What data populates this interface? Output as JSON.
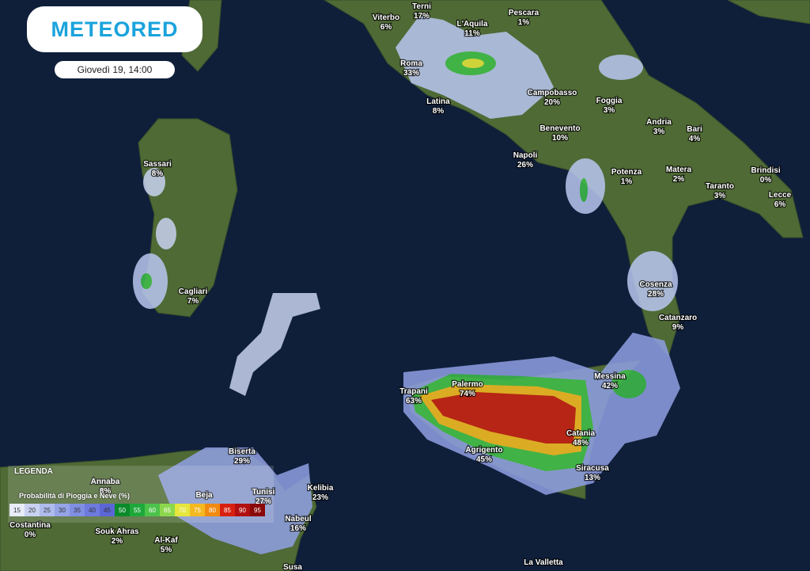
{
  "header": {
    "logo": "METEORED",
    "datetime": "Giovedì 19, 14:00"
  },
  "cities": [
    {
      "name": "Viterbo",
      "value": "6%"
    },
    {
      "name": "Terni",
      "value": "17%"
    },
    {
      "name": "L'Aquila",
      "value": "11%"
    },
    {
      "name": "Pescara",
      "value": "1%"
    },
    {
      "name": "Roma",
      "value": "33%"
    },
    {
      "name": "Latina",
      "value": "8%"
    },
    {
      "name": "Campobasso",
      "value": "20%"
    },
    {
      "name": "Foggia",
      "value": "3%"
    },
    {
      "name": "Andria",
      "value": "3%"
    },
    {
      "name": "Bari",
      "value": "4%"
    },
    {
      "name": "Benevento",
      "value": "10%"
    },
    {
      "name": "Napoli",
      "value": "26%"
    },
    {
      "name": "Potenza",
      "value": "1%"
    },
    {
      "name": "Matera",
      "value": "2%"
    },
    {
      "name": "Brindisi",
      "value": "0%"
    },
    {
      "name": "Taranto",
      "value": "3%"
    },
    {
      "name": "Lecce",
      "value": "6%"
    },
    {
      "name": "Sassari",
      "value": "8%"
    },
    {
      "name": "Cagliari",
      "value": "7%"
    },
    {
      "name": "Cosenza",
      "value": "28%"
    },
    {
      "name": "Catanzaro",
      "value": "9%"
    },
    {
      "name": "Messina",
      "value": "42%"
    },
    {
      "name": "Trapani",
      "value": "63%"
    },
    {
      "name": "Palermo",
      "value": "74%"
    },
    {
      "name": "Catania",
      "value": "48%"
    },
    {
      "name": "Agrigento",
      "value": "45%"
    },
    {
      "name": "Siracusa",
      "value": "13%"
    },
    {
      "name": "Biserta",
      "value": "29%"
    },
    {
      "name": "Tunisi",
      "value": "27%"
    },
    {
      "name": "Kelibia",
      "value": "23%"
    },
    {
      "name": "Nabeul",
      "value": "16%"
    },
    {
      "name": "Annaba",
      "value": "8%"
    },
    {
      "name": "Costantina",
      "value": "0%"
    },
    {
      "name": "Souk Ahras",
      "value": "2%"
    },
    {
      "name": "Al-Kaf",
      "value": "5%"
    }
  ],
  "places": [
    "Beja",
    "La Valletta",
    "Susa"
  ],
  "legend": {
    "title": "LEGENDA",
    "subtitle": "Probabilità di Pioggia e Neve (%)",
    "scale": [
      {
        "value": 15,
        "color": "#e8ecf8"
      },
      {
        "value": 20,
        "color": "#c8d2f0"
      },
      {
        "value": 25,
        "color": "#aebbec"
      },
      {
        "value": 30,
        "color": "#95a4e6"
      },
      {
        "value": 35,
        "color": "#808fe2"
      },
      {
        "value": 40,
        "color": "#6e7ade"
      },
      {
        "value": 45,
        "color": "#5c66d6"
      },
      {
        "value": 50,
        "color": "#0a8a2a"
      },
      {
        "value": 55,
        "color": "#1ea83a"
      },
      {
        "value": 60,
        "color": "#4cc24a"
      },
      {
        "value": 65,
        "color": "#8cd84c"
      },
      {
        "value": 70,
        "color": "#e6e63c"
      },
      {
        "value": 75,
        "color": "#f4b820"
      },
      {
        "value": 80,
        "color": "#f08a10"
      },
      {
        "value": 85,
        "color": "#d82010"
      },
      {
        "value": 90,
        "color": "#b01010"
      },
      {
        "value": 95,
        "color": "#8a0808"
      }
    ]
  }
}
